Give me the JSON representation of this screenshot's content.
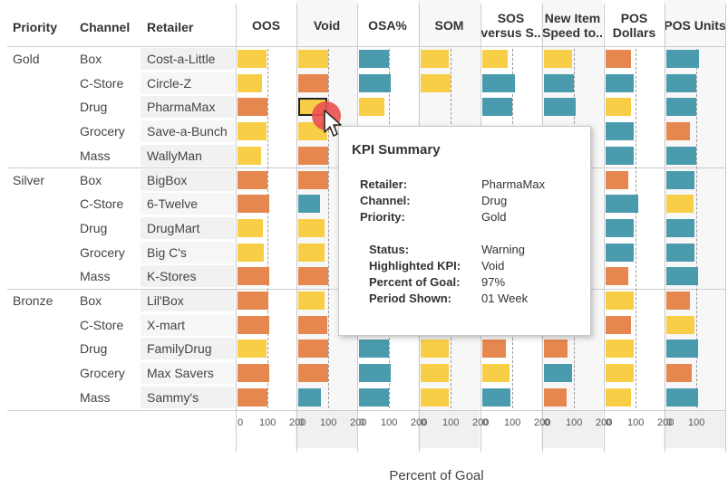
{
  "colors": {
    "yellow": "#f8ce46",
    "orange": "#e5874f",
    "teal": "#4a9bad",
    "highlight_marker": "#e8504f",
    "grid": "#cccccc",
    "band": "#f1f1f1"
  },
  "headers": {
    "priority": "Priority",
    "channel": "Channel",
    "retailer": "Retailer"
  },
  "kpi_columns": [
    {
      "label": "OOS"
    },
    {
      "label": "Void"
    },
    {
      "label": "OSA%"
    },
    {
      "label": "SOM"
    },
    {
      "label": "SOS versus S.."
    },
    {
      "label": "New Item Speed to.."
    },
    {
      "label": "POS Dollars"
    },
    {
      "label": "POS Units"
    }
  ],
  "groups": [
    {
      "priority": "Gold",
      "rows": [
        {
          "channel": "Box",
          "retailer": "Cost-a-Little"
        },
        {
          "channel": "C-Store",
          "retailer": "Circle-Z"
        },
        {
          "channel": "Drug",
          "retailer": "PharmaMax"
        },
        {
          "channel": "Grocery",
          "retailer": "Save-a-Bunch"
        },
        {
          "channel": "Mass",
          "retailer": "WallyMan"
        }
      ]
    },
    {
      "priority": "Silver",
      "rows": [
        {
          "channel": "Box",
          "retailer": "BigBox"
        },
        {
          "channel": "C-Store",
          "retailer": "6-Twelve"
        },
        {
          "channel": "Drug",
          "retailer": "DrugMart"
        },
        {
          "channel": "Grocery",
          "retailer": "Big C's"
        },
        {
          "channel": "Mass",
          "retailer": "K-Stores"
        }
      ]
    },
    {
      "priority": "Bronze",
      "rows": [
        {
          "channel": "Box",
          "retailer": "Lil'Box"
        },
        {
          "channel": "C-Store",
          "retailer": "X-mart"
        },
        {
          "channel": "Drug",
          "retailer": "FamilyDrug"
        },
        {
          "channel": "Grocery",
          "retailer": "Max Savers"
        },
        {
          "channel": "Mass",
          "retailer": "Sammy's"
        }
      ]
    }
  ],
  "chart_data": {
    "type": "bar",
    "xlabel": "Percent of Goal",
    "reference_line": 100,
    "ticks": [
      [
        "0",
        "100",
        "200"
      ],
      [
        "0",
        "100",
        "200"
      ],
      [
        "0",
        "100",
        "200"
      ],
      [
        "0",
        "100",
        "200"
      ],
      [
        "0",
        "100",
        "200"
      ],
      [
        "0",
        "100",
        "200"
      ],
      [
        "0",
        "100",
        "200"
      ],
      [
        "0",
        "100"
      ]
    ],
    "series": [
      {
        "name": "OOS",
        "values": [
          97,
          82,
          100,
          97,
          80,
          100,
          107,
          85,
          88,
          105,
          102,
          105,
          97,
          105,
          100
        ],
        "colors": [
          "yellow",
          "yellow",
          "orange",
          "yellow",
          "yellow",
          "orange",
          "orange",
          "yellow",
          "yellow",
          "orange",
          "orange",
          "orange",
          "yellow",
          "orange",
          "orange"
        ]
      },
      {
        "name": "Void",
        "values": [
          100,
          100,
          97,
          97,
          100,
          100,
          73,
          87,
          87,
          100,
          87,
          97,
          100,
          100,
          77
        ],
        "colors": [
          "yellow",
          "orange",
          "yellow",
          "yellow",
          "orange",
          "orange",
          "teal",
          "yellow",
          "yellow",
          "orange",
          "yellow",
          "orange",
          "orange",
          "orange",
          "teal"
        ]
      },
      {
        "name": "OSA%",
        "values": [
          100,
          105,
          85,
          null,
          null,
          null,
          null,
          null,
          null,
          null,
          null,
          null,
          100,
          105,
          100
        ],
        "colors": [
          "teal",
          "teal",
          "yellow",
          null,
          null,
          null,
          null,
          null,
          null,
          null,
          null,
          null,
          "teal",
          "teal",
          "teal"
        ]
      },
      {
        "name": "SOM",
        "values": [
          95,
          100,
          null,
          null,
          null,
          null,
          null,
          null,
          null,
          null,
          null,
          null,
          95,
          95,
          95
        ],
        "colors": [
          "yellow",
          "yellow",
          null,
          null,
          null,
          null,
          null,
          null,
          null,
          null,
          null,
          null,
          "yellow",
          "yellow",
          "yellow"
        ]
      },
      {
        "name": "SOS versus S..",
        "values": [
          85,
          110,
          100,
          null,
          null,
          null,
          null,
          null,
          null,
          null,
          null,
          null,
          80,
          90,
          95
        ],
        "colors": [
          "yellow",
          "teal",
          "teal",
          null,
          null,
          null,
          null,
          null,
          null,
          null,
          null,
          null,
          "orange",
          "yellow",
          "teal"
        ]
      },
      {
        "name": "New Item Speed to..",
        "values": [
          95,
          100,
          105,
          null,
          null,
          null,
          null,
          null,
          null,
          null,
          null,
          null,
          80,
          95,
          75
        ],
        "colors": [
          "yellow",
          "teal",
          "teal",
          null,
          null,
          null,
          null,
          null,
          null,
          null,
          null,
          null,
          "orange",
          "teal",
          "orange"
        ]
      },
      {
        "name": "POS Dollars",
        "values": [
          85,
          95,
          85,
          95,
          95,
          75,
          110,
          95,
          95,
          75,
          95,
          85,
          95,
          95,
          85
        ],
        "colors": [
          "orange",
          "teal",
          "yellow",
          "teal",
          "teal",
          "orange",
          "teal",
          "teal",
          "teal",
          "orange",
          "yellow",
          "orange",
          "yellow",
          "yellow",
          "yellow"
        ]
      },
      {
        "name": "POS Units",
        "values": [
          110,
          100,
          100,
          80,
          100,
          95,
          90,
          95,
          95,
          105,
          80,
          95,
          105,
          85,
          105
        ],
        "colors": [
          "teal",
          "teal",
          "teal",
          "orange",
          "teal",
          "teal",
          "yellow",
          "teal",
          "teal",
          "teal",
          "orange",
          "yellow",
          "teal",
          "orange",
          "teal"
        ]
      }
    ]
  },
  "tooltip": {
    "title": "KPI Summary",
    "fields": [
      {
        "key": "Retailer:",
        "value": "PharmaMax"
      },
      {
        "key": "Channel:",
        "value": "Drug"
      },
      {
        "key": "Priority:",
        "value": "Gold"
      }
    ],
    "status_fields": [
      {
        "key": "Status:",
        "value": "Warning"
      },
      {
        "key": "Highlighted KPI:",
        "value": "Void"
      },
      {
        "key": "Percent of Goal:",
        "value": "97%"
      },
      {
        "key": "Period Shown:",
        "value": "01 Week"
      }
    ]
  }
}
